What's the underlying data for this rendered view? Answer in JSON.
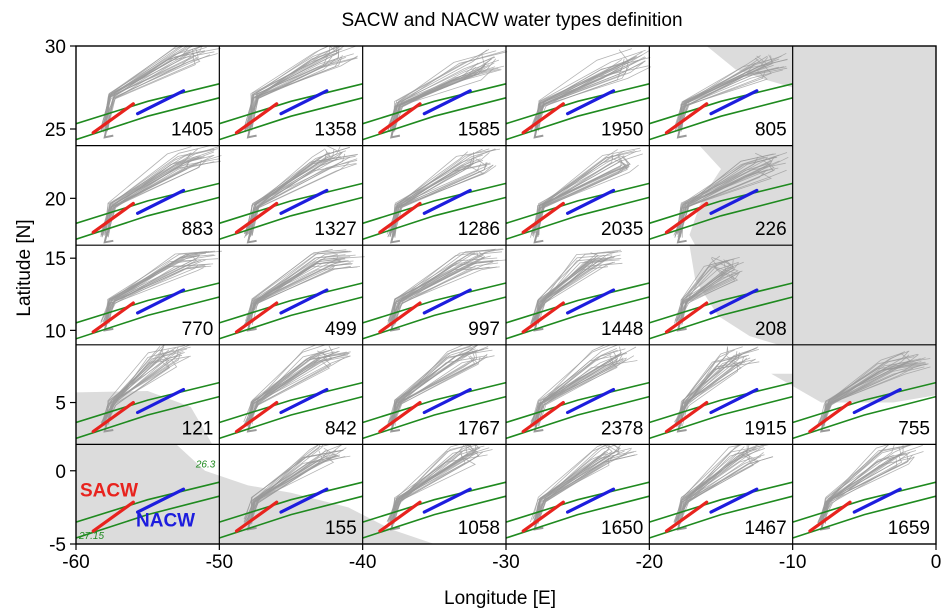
{
  "chart_data": {
    "type": "line",
    "title": "SACW and NACW water types definition",
    "xlabel": "Longitude [E]",
    "ylabel": "Latitude [N]",
    "xlim": [
      -60,
      0
    ],
    "x_ticks": [
      "-60",
      "-50",
      "-40",
      "-30",
      "-20",
      "-10",
      "0"
    ],
    "y_ticks": [
      {
        "label": "30",
        "row": 0,
        "value": 30
      },
      {
        "label": "25",
        "row": 0,
        "value": 25
      },
      {
        "label": "20",
        "row": 1,
        "value": 20
      },
      {
        "label": "15",
        "row": 2,
        "value": 15
      },
      {
        "label": "10",
        "row": 2,
        "value": 10
      },
      {
        "label": "5",
        "row": 3,
        "value": 5
      },
      {
        "label": "0",
        "row": 4,
        "value": 0
      },
      {
        "label": "-5",
        "row": 4,
        "value": -5
      }
    ],
    "rows": [
      {
        "ylim": [
          24,
          30
        ]
      },
      {
        "ylim": [
          16.8,
          23.6
        ]
      },
      {
        "ylim": [
          9,
          15.9
        ]
      },
      {
        "ylim": [
          2.1,
          9
        ]
      },
      {
        "ylim": [
          -5,
          1.8
        ]
      }
    ],
    "panels": [
      {
        "row": 0,
        "col": 0,
        "count": "1405",
        "cloud": [
          [
            -58,
            25
          ],
          [
            -57.5,
            27
          ],
          [
            -52.5,
            29.5
          ],
          [
            -51,
            30
          ]
        ]
      },
      {
        "row": 0,
        "col": 1,
        "count": "1358",
        "cloud": [
          [
            -48,
            25
          ],
          [
            -47.5,
            27
          ],
          [
            -42.5,
            29.2
          ],
          [
            -41.5,
            29.8
          ]
        ]
      },
      {
        "row": 0,
        "col": 2,
        "count": "1585",
        "cloud": [
          [
            -38,
            25
          ],
          [
            -37.5,
            26.5
          ],
          [
            -32.5,
            28.5
          ],
          [
            -31,
            29.2
          ]
        ]
      },
      {
        "row": 0,
        "col": 3,
        "count": "1950",
        "cloud": [
          [
            -28,
            25
          ],
          [
            -27.5,
            26.5
          ],
          [
            -22.5,
            28.5
          ],
          [
            -21,
            29.2
          ]
        ]
      },
      {
        "row": 0,
        "col": 4,
        "count": "805",
        "cloud": [
          [
            -18,
            25
          ],
          [
            -17.5,
            26.5
          ],
          [
            -12.5,
            28.5
          ],
          [
            -11.5,
            29
          ]
        ]
      },
      {
        "row": 1,
        "col": 0,
        "count": "883",
        "cloud": [
          [
            -58,
            17.5
          ],
          [
            -57.5,
            19.5
          ],
          [
            -52.5,
            22.5
          ],
          [
            -51,
            23
          ]
        ]
      },
      {
        "row": 1,
        "col": 1,
        "count": "1327",
        "cloud": [
          [
            -48,
            17.5
          ],
          [
            -47.5,
            19.5
          ],
          [
            -42.5,
            22.5
          ],
          [
            -41.5,
            23
          ]
        ]
      },
      {
        "row": 1,
        "col": 2,
        "count": "1286",
        "cloud": [
          [
            -38,
            17.5
          ],
          [
            -37.5,
            19.5
          ],
          [
            -32.5,
            22.3
          ],
          [
            -31.5,
            22.8
          ]
        ]
      },
      {
        "row": 1,
        "col": 3,
        "count": "2035",
        "cloud": [
          [
            -28,
            17.5
          ],
          [
            -27.5,
            19.5
          ],
          [
            -22.5,
            22.3
          ],
          [
            -21.5,
            22.8
          ]
        ]
      },
      {
        "row": 1,
        "col": 4,
        "count": "226",
        "cloud": [
          [
            -18,
            17.5
          ],
          [
            -17.5,
            19.5
          ],
          [
            -12.5,
            22
          ],
          [
            -11.5,
            22.5
          ]
        ]
      },
      {
        "row": 2,
        "col": 0,
        "count": "770",
        "cloud": [
          [
            -58,
            10.5
          ],
          [
            -57.5,
            12
          ],
          [
            -52.5,
            14.8
          ],
          [
            -51,
            15
          ]
        ]
      },
      {
        "row": 2,
        "col": 1,
        "count": "499",
        "cloud": [
          [
            -48,
            10.5
          ],
          [
            -47.5,
            12
          ],
          [
            -42.5,
            14.8
          ],
          [
            -41,
            15
          ]
        ]
      },
      {
        "row": 2,
        "col": 2,
        "count": "997",
        "cloud": [
          [
            -38,
            10.5
          ],
          [
            -37.5,
            12
          ],
          [
            -32.5,
            14.8
          ],
          [
            -31,
            15
          ]
        ]
      },
      {
        "row": 2,
        "col": 3,
        "count": "1448",
        "cloud": [
          [
            -28,
            10.5
          ],
          [
            -27.5,
            12
          ],
          [
            -24,
            14.8
          ],
          [
            -23,
            15
          ]
        ]
      },
      {
        "row": 2,
        "col": 4,
        "count": "208",
        "cloud": [
          [
            -18,
            10.5
          ],
          [
            -17.5,
            12
          ],
          [
            -15,
            14
          ],
          [
            -14.5,
            14.5
          ]
        ]
      },
      {
        "row": 3,
        "col": 0,
        "count": "121",
        "cloud": [
          [
            -58,
            3.5
          ],
          [
            -57.5,
            5
          ],
          [
            -54,
            8
          ],
          [
            -53,
            8.5
          ]
        ]
      },
      {
        "row": 3,
        "col": 1,
        "count": "842",
        "cloud": [
          [
            -48,
            3.5
          ],
          [
            -47.5,
            5
          ],
          [
            -43,
            8
          ],
          [
            -42,
            8.5
          ]
        ]
      },
      {
        "row": 3,
        "col": 2,
        "count": "1767",
        "cloud": [
          [
            -38,
            3.5
          ],
          [
            -37.5,
            5
          ],
          [
            -33,
            8
          ],
          [
            -32,
            8.5
          ]
        ]
      },
      {
        "row": 3,
        "col": 3,
        "count": "2378",
        "cloud": [
          [
            -28,
            3.5
          ],
          [
            -27.5,
            5
          ],
          [
            -23,
            8
          ],
          [
            -22,
            8.5
          ]
        ]
      },
      {
        "row": 3,
        "col": 4,
        "count": "1915",
        "cloud": [
          [
            -18,
            3.5
          ],
          [
            -17.5,
            5
          ],
          [
            -14.5,
            7.8
          ],
          [
            -13.5,
            8.3
          ]
        ]
      },
      {
        "row": 3,
        "col": 5,
        "count": "755",
        "cloud": [
          [
            -8,
            3.5
          ],
          [
            -7.5,
            5
          ],
          [
            -3,
            7.5
          ],
          [
            -1.5,
            8
          ]
        ]
      },
      {
        "row": 4,
        "col": 0,
        "count": "",
        "cloud": []
      },
      {
        "row": 4,
        "col": 1,
        "count": "155",
        "cloud": [
          [
            -48,
            -3.5
          ],
          [
            -47.5,
            -2
          ],
          [
            -43,
            1
          ],
          [
            -42,
            1.5
          ]
        ]
      },
      {
        "row": 4,
        "col": 2,
        "count": "1058",
        "cloud": [
          [
            -38,
            -3.5
          ],
          [
            -37.5,
            -2
          ],
          [
            -33,
            1
          ],
          [
            -32,
            1.5
          ]
        ]
      },
      {
        "row": 4,
        "col": 3,
        "count": "1650",
        "cloud": [
          [
            -28,
            -3.5
          ],
          [
            -27.5,
            -2
          ],
          [
            -23,
            1
          ],
          [
            -22,
            1.5
          ]
        ]
      },
      {
        "row": 4,
        "col": 4,
        "count": "1467",
        "cloud": [
          [
            -18,
            -3.5
          ],
          [
            -17.5,
            -2
          ],
          [
            -13.5,
            1
          ],
          [
            -12.5,
            1.5
          ]
        ]
      },
      {
        "row": 4,
        "col": 5,
        "count": "1659",
        "cloud": [
          [
            -8,
            -3.5
          ],
          [
            -7.5,
            -2
          ],
          [
            -3,
            1
          ],
          [
            -2,
            1.5
          ]
        ]
      }
    ],
    "annotations": {
      "sacw_label": "SACW",
      "nacw_label": "NACW",
      "upper_isopycnal_label": "26.3",
      "lower_isopycnal_label": "27.15"
    },
    "colors": {
      "sacw": "#e8231e",
      "nacw": "#1d1dde",
      "isopycnal": "#1f8a1f",
      "trajectories": "#9a9a9a",
      "land": "#dcdcdc"
    }
  }
}
